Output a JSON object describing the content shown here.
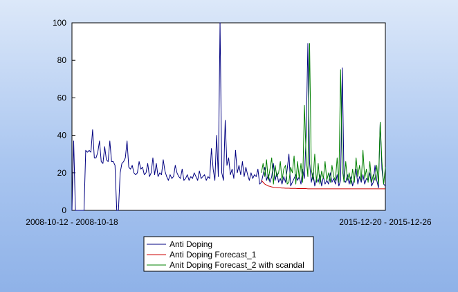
{
  "chart_data": {
    "type": "line",
    "title": "",
    "xlabel": "",
    "ylabel": "",
    "ylim": [
      0,
      100
    ],
    "yticks": [
      0,
      20,
      40,
      60,
      80,
      100
    ],
    "x_tick_labels": [
      "2008-10-12 - 2008-10-18",
      "2015-12-20 - 2015-12-26"
    ],
    "grid": false,
    "legend_position": "bottom",
    "legend": [
      "Anti Doping",
      "Anti Doping Forecast_1",
      "Anit Doping Forecast_2 with scandal"
    ],
    "series": [
      {
        "name": "Anti Doping",
        "color": "#000080",
        "values": [
          0,
          37,
          0,
          0,
          0,
          0,
          0,
          0,
          32,
          31,
          32,
          31,
          43,
          28,
          28,
          31,
          37,
          26,
          25,
          34,
          27,
          26,
          37,
          26,
          26,
          24,
          0,
          0,
          20,
          25,
          26,
          28,
          37,
          23,
          22,
          24,
          20,
          19,
          20,
          26,
          22,
          23,
          19,
          20,
          25,
          18,
          20,
          28,
          19,
          25,
          18,
          20,
          19,
          27,
          21,
          18,
          16,
          19,
          17,
          18,
          24,
          20,
          18,
          17,
          22,
          16,
          17,
          19,
          16,
          18,
          17,
          20,
          18,
          16,
          21,
          17,
          18,
          19,
          16,
          18,
          17,
          33,
          22,
          16,
          40,
          18,
          100,
          20,
          16,
          48,
          24,
          28,
          19,
          22,
          17,
          32,
          20,
          24,
          19,
          26,
          18,
          23,
          19,
          16,
          20,
          17,
          19,
          18,
          22,
          14,
          15,
          19,
          23,
          16,
          19,
          15,
          18,
          25,
          16,
          20,
          15,
          17,
          14,
          18,
          15,
          22,
          30,
          13,
          15,
          17,
          19,
          16,
          18,
          14,
          22,
          17,
          40,
          89,
          25,
          15,
          20,
          13,
          17,
          15,
          19,
          13,
          18,
          14,
          16,
          14,
          20,
          15,
          17,
          14,
          19,
          13,
          16,
          76,
          16,
          15,
          19,
          14,
          18,
          13,
          17,
          22,
          14,
          18,
          15,
          19,
          14,
          17,
          16,
          20,
          13,
          15,
          24,
          16,
          12,
          47,
          22,
          14,
          13
        ]
      },
      {
        "name": "Anti Doping Forecast_1",
        "color": "#cc0000",
        "start_index": 110,
        "values": [
          16,
          15,
          14,
          13.5,
          13,
          12.8,
          12.5,
          12.3,
          12.2,
          12.1,
          12,
          12,
          11.9,
          11.9,
          11.8,
          11.8,
          11.8,
          11.7,
          11.7,
          11.7,
          11.7,
          11.6,
          11.6,
          11.6,
          11.6,
          11.6,
          11.6,
          11.5,
          11.5,
          11.5,
          11.5,
          11.5,
          11.5,
          11.5,
          11.5,
          11.5,
          11.5,
          11.5,
          11.5,
          11.5,
          11.5,
          11.5,
          11.5,
          11.5,
          11.5,
          11.5,
          11.5,
          11.5,
          11.5,
          11.5,
          11.5,
          11.5,
          11.5,
          11.5,
          11.5,
          11.5,
          11.5,
          11.5,
          11.5,
          11.5,
          11.5,
          11.5,
          11.5,
          11.5,
          11.5,
          11.5,
          11.5,
          11.5,
          11.5,
          11.5,
          11.5,
          11.5,
          11.5
        ]
      },
      {
        "name": "Anit Doping Forecast_2 with scandal",
        "color": "#008000",
        "start_index": 110,
        "values": [
          20,
          25,
          18,
          27,
          16,
          22,
          28,
          14,
          24,
          18,
          20,
          26,
          16,
          22,
          24,
          14,
          15,
          23,
          20,
          29,
          14,
          26,
          17,
          25,
          15,
          56,
          28,
          18,
          89,
          22,
          16,
          30,
          15,
          25,
          14,
          21,
          17,
          26,
          16,
          20,
          15,
          24,
          18,
          16,
          28,
          15,
          75,
          22,
          15,
          26,
          16,
          20,
          14,
          22,
          15,
          28,
          18,
          24,
          16,
          32,
          17,
          22,
          15,
          26,
          15,
          19,
          16,
          24,
          14,
          47,
          26,
          14,
          23
        ]
      }
    ]
  }
}
